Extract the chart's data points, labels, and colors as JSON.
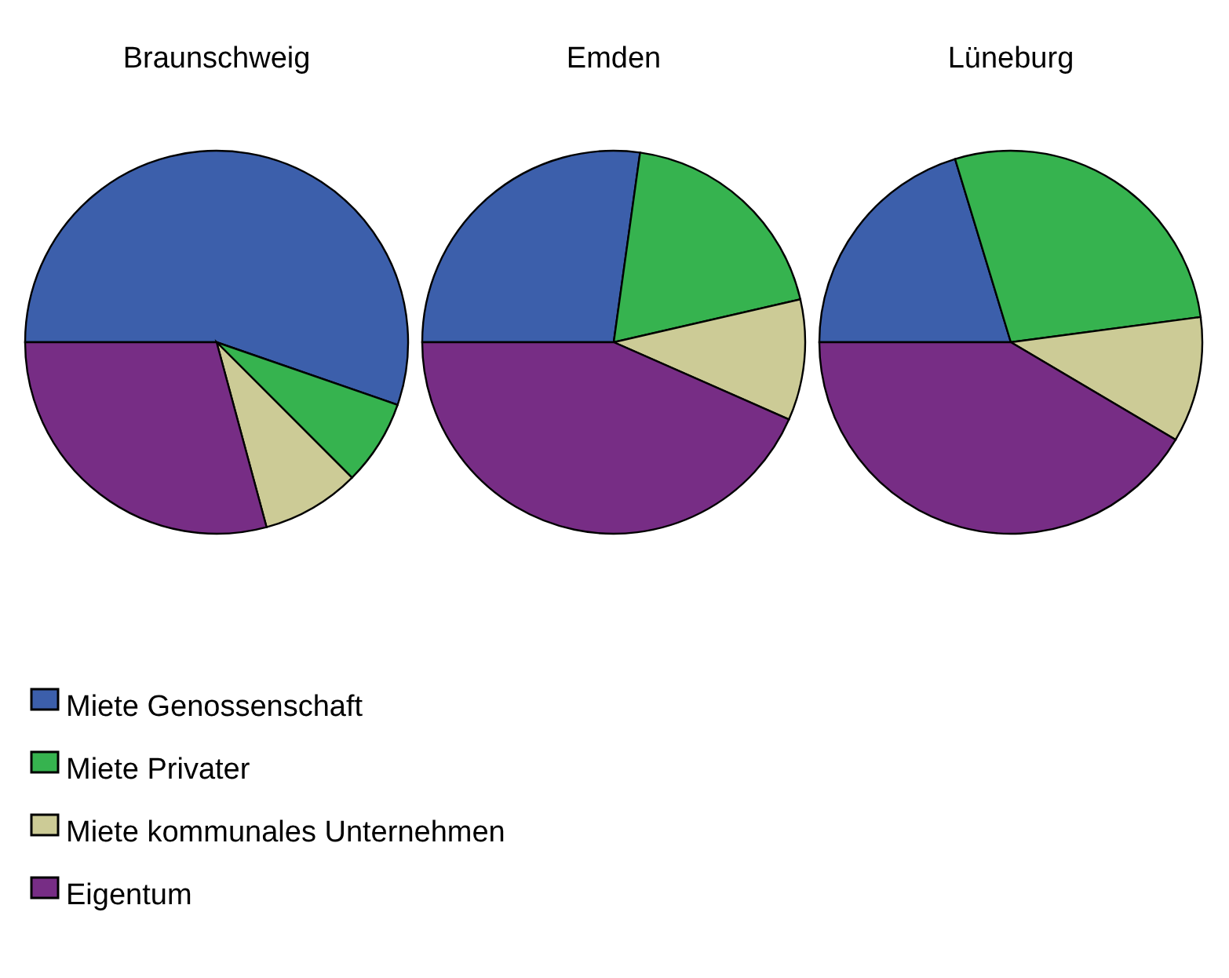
{
  "chart_data": [
    {
      "type": "pie",
      "title": "Braunschweig",
      "categories": [
        "Miete Genossenschaft",
        "Miete Privater",
        "Miete kommunales Unternehmen",
        "Eigentum"
      ],
      "values": [
        55.3,
        7.2,
        8.3,
        29.2
      ],
      "colors": [
        "#3c5fab",
        "#36b34f",
        "#cccb96",
        "#772d85"
      ],
      "legend": "bottom"
    },
    {
      "type": "pie",
      "title": "Emden",
      "categories": [
        null,
        null,
        null,
        null
      ],
      "values": [
        27.2,
        19.2,
        10.2,
        43.4
      ],
      "colors": [
        "#3c5fab",
        "#36b34f",
        "#cccb96",
        "#772d85"
      ]
    },
    {
      "type": "pie",
      "title": "Lüneburg",
      "categories": [
        null,
        null,
        null,
        null
      ],
      "values": [
        20.3,
        27.6,
        10.6,
        41.5
      ],
      "colors": [
        "#3c5fab",
        "#36b34f",
        "#cccb96",
        "#772d85"
      ]
    }
  ]
}
